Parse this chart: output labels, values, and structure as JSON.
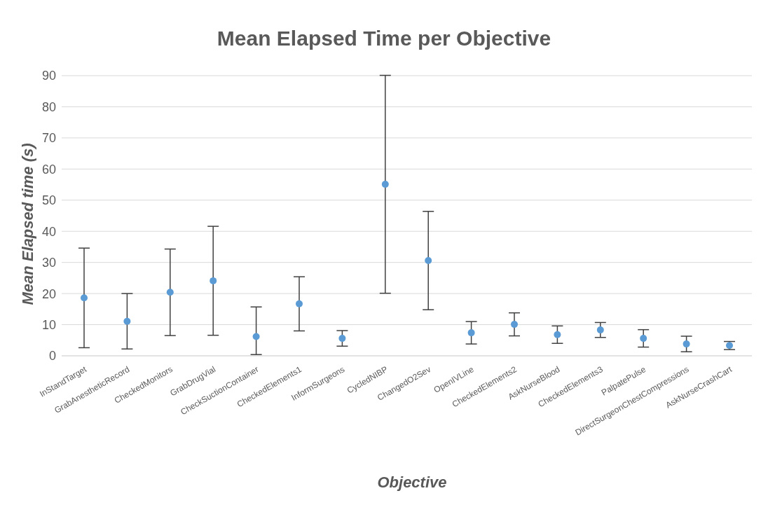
{
  "chart_data": {
    "type": "scatter",
    "title": "Mean Elapsed Time per Objective",
    "xlabel": "Objective",
    "ylabel": "Mean Elapsed time (s)",
    "categories": [
      "InStandTarget",
      "GrabAnestheticRecord",
      "CheckedMonitors",
      "GrabDrugVial",
      "CheckSuctionContainer",
      "CheckedElements1",
      "InformSurgeons",
      "CycledNIBP",
      "ChangedO2Sev",
      "OpenIVLine",
      "CheckedElements2",
      "AskNurseBlood",
      "CheckedElements3",
      "PalpatePulse",
      "DirectSurgeonChestCompressions",
      "AskNurseCrashCart"
    ],
    "values": [
      18.6,
      11.1,
      20.4,
      24.1,
      6.2,
      16.7,
      5.6,
      55.1,
      30.6,
      7.4,
      10.1,
      6.8,
      8.3,
      5.6,
      3.8,
      3.3
    ],
    "errors": [
      16,
      8.9,
      13.9,
      17.5,
      [
        0.4,
        15.7
      ],
      8.7,
      2.5,
      35,
      15.8,
      3.6,
      3.7,
      2.8,
      2.4,
      2.8,
      2.5,
      1.3
    ],
    "color": "#5b9bd5",
    "marker": "circle",
    "ylim": [
      0,
      90
    ],
    "yticks": [
      0,
      10,
      20,
      30,
      40,
      50,
      60,
      70,
      80,
      90
    ],
    "grid": "y",
    "legend": false
  }
}
